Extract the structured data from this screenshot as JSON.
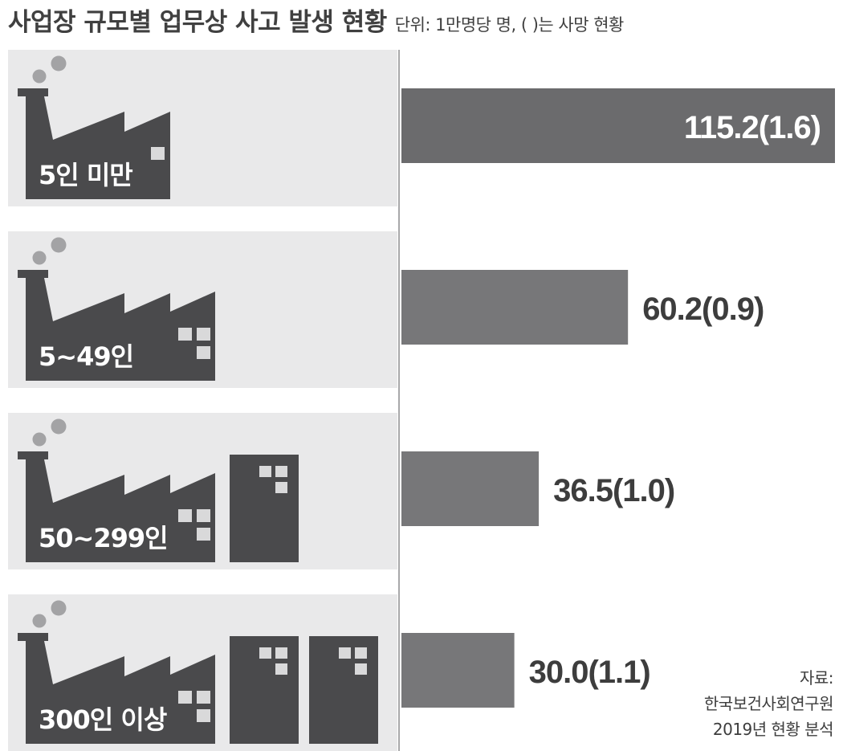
{
  "header": {
    "title": "사업장 규모별 업무상 사고 발생 현황",
    "unit_note": "단위: 1만명당 명, ( )는 사망 현황"
  },
  "source": {
    "line1": "자료:",
    "line2": "한국보건사회연구원",
    "line3": "2019년 현황 분석"
  },
  "colors": {
    "panel": "#e9e9ea",
    "factory": "#4a4a4c",
    "bar_dark": "#6b6b6d",
    "bar": "#777779",
    "window": "#d9d9da",
    "text": "#3d3d3d"
  },
  "chart_data": {
    "type": "bar",
    "orientation": "horizontal",
    "categories": [
      "5인 미만",
      "5~49인",
      "50~299인",
      "300인 이상"
    ],
    "series": [
      {
        "values": [
          115.2,
          60.2,
          36.5,
          30.0
        ]
      },
      {
        "values": [
          1.6,
          0.9,
          1.0,
          1.1
        ]
      }
    ],
    "value_labels": [
      "115.2(1.6)",
      "60.2(0.9)",
      "36.5(1.0)",
      "30.0(1.1)"
    ],
    "icons": [
      "small-factory-icon",
      "factory-icon",
      "factory-with-building-icon",
      "factory-with-two-buildings-icon"
    ],
    "buildings": [
      0,
      0,
      1,
      2
    ],
    "xlim": [
      0,
      115.2
    ],
    "grid": false,
    "legend": "none"
  }
}
